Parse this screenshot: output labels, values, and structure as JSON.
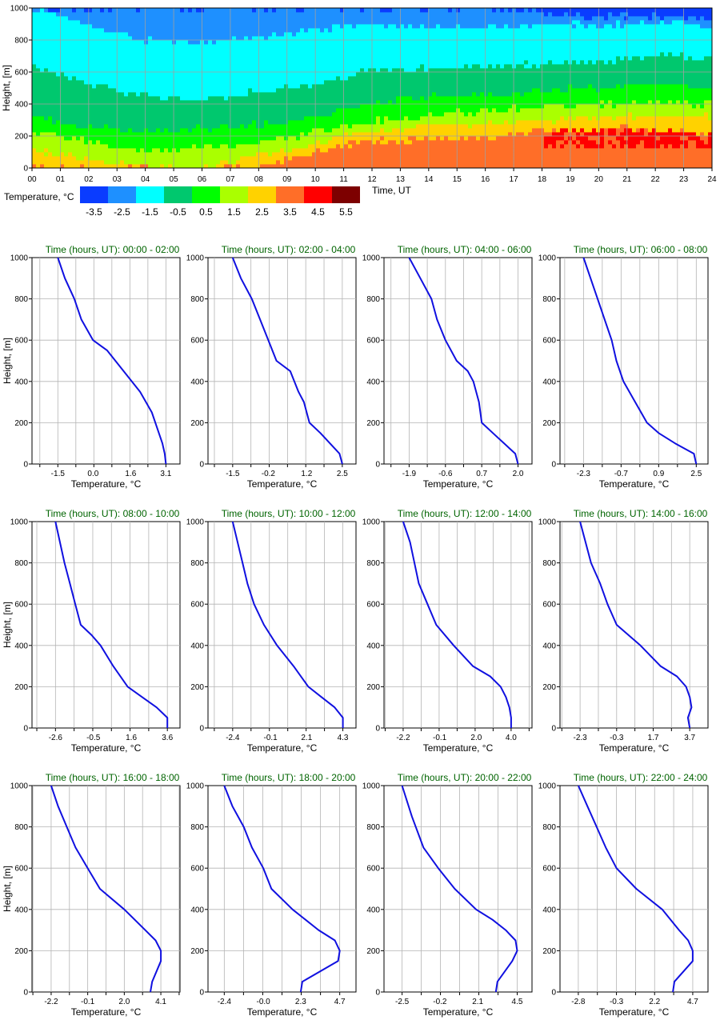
{
  "heatmap": {
    "ylabel": "Height, [m]",
    "xlabel": "Time, UT",
    "x_ticks": [
      "00",
      "01",
      "02",
      "03",
      "04",
      "05",
      "06",
      "07",
      "08",
      "09",
      "10",
      "11",
      "12",
      "13",
      "14",
      "15",
      "16",
      "17",
      "18",
      "19",
      "20",
      "21",
      "22",
      "23",
      "24"
    ],
    "y_ticks": [
      "0",
      "200",
      "400",
      "600",
      "800",
      "1000"
    ],
    "legend_title": "Temperature, °C",
    "legend_labels": [
      "-3.5",
      "-2.5",
      "-1.5",
      "-0.5",
      "0.5",
      "1.5",
      "2.5",
      "3.5",
      "4.5",
      "5.5"
    ],
    "legend_colors": [
      "#0a3cff",
      "#1e90ff",
      "#00ffff",
      "#00c86e",
      "#00ff00",
      "#aaff00",
      "#ffd200",
      "#ff6e28",
      "#ff0000",
      "#7d0000"
    ]
  },
  "profile_axis": {
    "xlabel": "Temperature, °C",
    "ylabel": "Height, [m]",
    "title_prefix": "Time (hours, UT): ",
    "y_ticks": [
      "0",
      "200",
      "400",
      "600",
      "800",
      "1000"
    ],
    "line_color": "#1010e0",
    "title_color": "#006400"
  },
  "chart_data": [
    {
      "type": "heatmap",
      "title": "",
      "xlabel": "Time, UT",
      "ylabel": "Height, [m]",
      "xlim": [
        0,
        24
      ],
      "ylim": [
        0,
        1000
      ],
      "colorbar_title": "Temperature, °C",
      "bins": [
        -3.5,
        -2.5,
        -1.5,
        -0.5,
        0.5,
        1.5,
        2.5,
        3.5,
        4.5,
        5.5
      ]
    },
    {
      "type": "line",
      "time_range": "00:00 - 02:00",
      "x_ticks": [
        "-1.5",
        "0.0",
        "1.6",
        "3.1"
      ],
      "xlim": [
        -2.6,
        3.7
      ],
      "ylim": [
        0,
        1000
      ],
      "series": [
        {
          "x": [
            3.1,
            3.05,
            2.95,
            2.8,
            2.5,
            2.0,
            1.3,
            0.6,
            0.0,
            -0.5,
            -0.8,
            -1.2,
            -1.5
          ],
          "y": [
            0,
            50,
            100,
            150,
            250,
            350,
            450,
            550,
            600,
            700,
            800,
            900,
            1000
          ]
        }
      ]
    },
    {
      "type": "line",
      "time_range": "02:00 - 04:00",
      "x_ticks": [
        "-1.5",
        "-0.2",
        "1.2",
        "2.5"
      ],
      "xlim": [
        -2.4,
        3.0
      ],
      "ylim": [
        0,
        1000
      ],
      "series": [
        {
          "x": [
            2.5,
            2.4,
            1.7,
            1.3,
            1.1,
            0.9,
            0.6,
            0.1,
            -0.2,
            -0.5,
            -0.8,
            -1.2,
            -1.5
          ],
          "y": [
            0,
            50,
            150,
            200,
            300,
            350,
            450,
            500,
            600,
            700,
            800,
            900,
            1000
          ]
        }
      ]
    },
    {
      "type": "line",
      "time_range": "04:00 - 06:00",
      "x_ticks": [
        "-1.9",
        "-0.6",
        "0.7",
        "2.0"
      ],
      "xlim": [
        -2.8,
        2.5
      ],
      "ylim": [
        0,
        1000
      ],
      "series": [
        {
          "x": [
            2.0,
            1.9,
            1.1,
            0.7,
            0.6,
            0.4,
            0.2,
            -0.2,
            -0.6,
            -0.9,
            -1.1,
            -1.5,
            -1.9
          ],
          "y": [
            0,
            50,
            150,
            200,
            300,
            400,
            450,
            500,
            600,
            700,
            800,
            900,
            1000
          ]
        }
      ]
    },
    {
      "type": "line",
      "time_range": "06:00 - 08:00",
      "x_ticks": [
        "-2.3",
        "-0.7",
        "0.9",
        "2.5"
      ],
      "xlim": [
        -3.3,
        3.0
      ],
      "ylim": [
        0,
        1000
      ],
      "series": [
        {
          "x": [
            2.5,
            2.4,
            1.6,
            0.9,
            0.4,
            -0.1,
            -0.6,
            -0.9,
            -1.1,
            -1.4,
            -1.7,
            -2.0,
            -2.3
          ],
          "y": [
            0,
            50,
            100,
            150,
            200,
            300,
            400,
            500,
            600,
            700,
            800,
            900,
            1000
          ]
        }
      ]
    },
    {
      "type": "line",
      "time_range": "08:00 - 10:00",
      "x_ticks": [
        "-2.6",
        "-0.5",
        "1.6",
        "3.6"
      ],
      "xlim": [
        -3.9,
        4.3
      ],
      "ylim": [
        0,
        1000
      ],
      "series": [
        {
          "x": [
            3.6,
            3.6,
            3.0,
            2.2,
            1.4,
            0.6,
            -0.1,
            -0.6,
            -1.2,
            -1.5,
            -1.8,
            -2.1,
            -2.6
          ],
          "y": [
            0,
            50,
            100,
            150,
            200,
            300,
            400,
            450,
            500,
            600,
            700,
            800,
            1000
          ]
        }
      ]
    },
    {
      "type": "line",
      "time_range": "10:00 - 12:00",
      "x_ticks": [
        "-2.4",
        "-0.1",
        "2.1",
        "4.3"
      ],
      "xlim": [
        -3.9,
        5.1
      ],
      "ylim": [
        0,
        1000
      ],
      "series": [
        {
          "x": [
            4.3,
            4.3,
            3.8,
            3.0,
            2.2,
            1.3,
            0.3,
            -0.5,
            -1.1,
            -1.5,
            -1.8,
            -2.1,
            -2.4
          ],
          "y": [
            0,
            50,
            100,
            150,
            200,
            300,
            400,
            500,
            600,
            700,
            800,
            900,
            1000
          ]
        }
      ]
    },
    {
      "type": "line",
      "time_range": "12:00 - 14:00",
      "x_ticks": [
        "-2.2",
        "-0.1",
        "2.0",
        "4.0"
      ],
      "xlim": [
        -3.3,
        5.2
      ],
      "ylim": [
        0,
        1000
      ],
      "series": [
        {
          "x": [
            4.0,
            4.0,
            3.9,
            3.7,
            3.4,
            2.8,
            1.8,
            0.7,
            -0.3,
            -0.8,
            -1.3,
            -1.8,
            -2.2
          ],
          "y": [
            0,
            50,
            100,
            150,
            200,
            250,
            300,
            400,
            500,
            600,
            700,
            900,
            1000
          ]
        }
      ]
    },
    {
      "type": "line",
      "time_range": "14:00 - 16:00",
      "x_ticks": [
        "-2.3",
        "-0.3",
        "1.7",
        "3.7"
      ],
      "xlim": [
        -3.4,
        4.7
      ],
      "ylim": [
        0,
        1000
      ],
      "series": [
        {
          "x": [
            3.7,
            3.6,
            3.8,
            3.7,
            3.5,
            3.0,
            2.1,
            1.0,
            -0.3,
            -0.8,
            -1.2,
            -1.7,
            -2.3
          ],
          "y": [
            0,
            50,
            100,
            150,
            200,
            250,
            300,
            400,
            500,
            600,
            700,
            800,
            1000
          ]
        }
      ]
    },
    {
      "type": "line",
      "time_range": "16:00 - 18:00",
      "x_ticks": [
        "-2.2",
        "-0.1",
        "2.0",
        "4.1"
      ],
      "xlim": [
        -3.3,
        5.2
      ],
      "ylim": [
        0,
        1000
      ],
      "series": [
        {
          "x": [
            3.5,
            3.6,
            4.1,
            4.1,
            3.8,
            3.2,
            2.0,
            0.6,
            -0.1,
            -0.8,
            -1.3,
            -1.8,
            -2.2
          ],
          "y": [
            0,
            50,
            150,
            200,
            250,
            300,
            400,
            500,
            600,
            700,
            800,
            900,
            1000
          ]
        }
      ]
    },
    {
      "type": "line",
      "time_range": "18:00 - 20:00",
      "x_ticks": [
        "-2.4",
        "-0.0",
        "2.3",
        "4.7"
      ],
      "xlim": [
        -3.4,
        5.7
      ],
      "ylim": [
        0,
        1000
      ],
      "series": [
        {
          "x": [
            2.3,
            2.4,
            4.6,
            4.7,
            4.4,
            3.4,
            1.8,
            0.5,
            -0.0,
            -0.7,
            -1.2,
            -1.9,
            -2.4
          ],
          "y": [
            0,
            50,
            150,
            200,
            250,
            300,
            400,
            500,
            600,
            700,
            800,
            900,
            1000
          ]
        }
      ]
    },
    {
      "type": "line",
      "time_range": "20:00 - 22:00",
      "x_ticks": [
        "-2.5",
        "-0.2",
        "2.1",
        "4.5"
      ],
      "xlim": [
        -3.6,
        5.4
      ],
      "ylim": [
        0,
        1000
      ],
      "series": [
        {
          "x": [
            3.2,
            3.3,
            4.2,
            4.5,
            4.4,
            3.8,
            3.0,
            2.0,
            0.7,
            -0.3,
            -1.2,
            -1.9,
            -2.5
          ],
          "y": [
            0,
            50,
            150,
            200,
            250,
            300,
            350,
            400,
            500,
            600,
            700,
            850,
            1000
          ]
        }
      ]
    },
    {
      "type": "line",
      "time_range": "22:00 - 24:00",
      "x_ticks": [
        "-2.8",
        "-0.3",
        "2.2",
        "4.7"
      ],
      "xlim": [
        -4.0,
        5.7
      ],
      "ylim": [
        0,
        1000
      ],
      "series": [
        {
          "x": [
            3.4,
            3.5,
            4.7,
            4.7,
            4.4,
            3.8,
            2.7,
            1.0,
            -0.3,
            -1.0,
            -1.6,
            -2.2,
            -2.8
          ],
          "y": [
            0,
            50,
            150,
            200,
            250,
            300,
            400,
            500,
            600,
            700,
            800,
            900,
            1000
          ]
        }
      ]
    }
  ]
}
